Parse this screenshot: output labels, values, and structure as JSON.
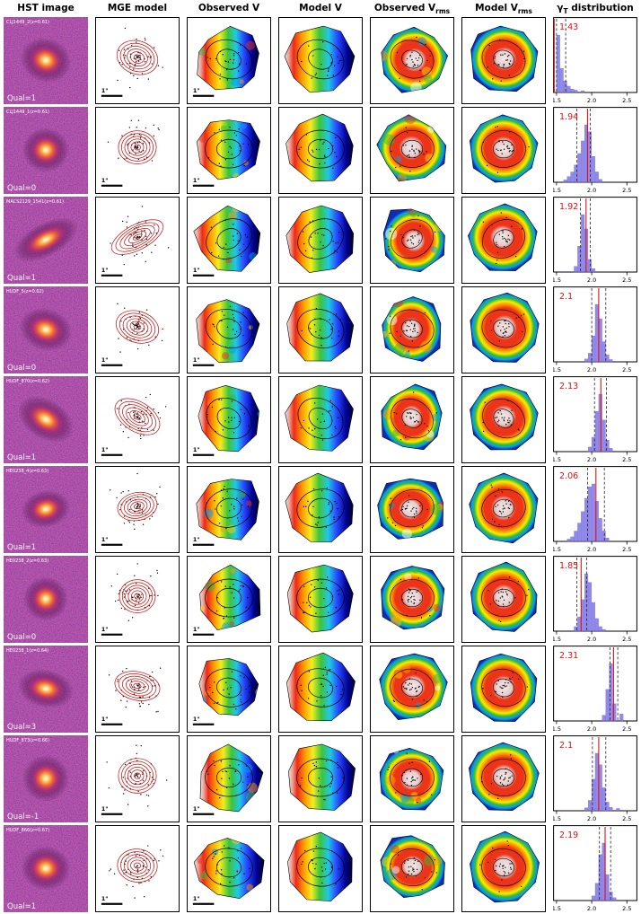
{
  "header": {
    "columns": [
      {
        "key": "hst-image",
        "label": "HST image"
      },
      {
        "key": "mge-model",
        "label": "MGE model"
      },
      {
        "key": "observed-v",
        "label": "Observed V"
      },
      {
        "key": "model-v",
        "label": "Model V"
      },
      {
        "key": "observed-vrms",
        "label": "Observed V",
        "sub": "rms"
      },
      {
        "key": "model-vrms",
        "label": "Model V",
        "sub": "rms"
      },
      {
        "key": "gamma-distribution",
        "label": "γ",
        "sub": "T",
        "post": " distribution"
      }
    ]
  },
  "panels": {
    "scalebar": "1\""
  },
  "rows": [
    {
      "name": "CLJ1449_2(z=0.61)",
      "qual": "Qual=1"
    },
    {
      "name": "CLJ1449_1(z=0.61)",
      "qual": "Qual=0"
    },
    {
      "name": "MACS2129_1541(z=0.61)",
      "qual": "Qual=1"
    },
    {
      "name": "HUDF_5(z=0.62)",
      "qual": "Qual=0"
    },
    {
      "name": "HUDF_870(z=0.62)",
      "qual": "Qual=1"
    },
    {
      "name": "HE0238_4(z=0.63)",
      "qual": "Qual=1"
    },
    {
      "name": "HE0238_2(z=0.63)",
      "qual": "Qual=0"
    },
    {
      "name": "HE0238_1(z=0.64)",
      "qual": "Qual=3"
    },
    {
      "name": "HUDF_873(z=0.66)",
      "qual": "Qual=-1"
    },
    {
      "name": "HUDF_866(z=0.67)",
      "qual": "Qual=1"
    }
  ],
  "histogram_axis": {
    "ticks": [
      "1.5",
      "2.0",
      "2.5"
    ]
  },
  "chart_data": [
    {
      "type": "histogram",
      "galaxy": "CLJ1449_2(z=0.61)",
      "gamma_label": "1.43",
      "gamma": 1.43,
      "dashed": [
        1.5,
        1.63
      ],
      "xlim": [
        1.45,
        2.65
      ],
      "xticks": [
        1.5,
        2.0,
        2.5
      ],
      "bin_width": 0.05,
      "bin_centers": [
        1.525,
        1.575,
        1.625,
        1.675,
        1.725,
        1.775,
        1.875
      ],
      "rel_heights": [
        1,
        0.42,
        0.2,
        0.11,
        0.06,
        0.04,
        0.03
      ]
    },
    {
      "type": "histogram",
      "galaxy": "CLJ1449_1(z=0.61)",
      "gamma_label": "1.94",
      "gamma": 1.94,
      "dashed": [
        1.79,
        1.98
      ],
      "xlim": [
        1.45,
        2.65
      ],
      "xticks": [
        1.5,
        2.0,
        2.5
      ],
      "bin_width": 0.05,
      "bin_centers": [
        1.625,
        1.675,
        1.725,
        1.775,
        1.825,
        1.875,
        1.925,
        1.975,
        2.025,
        2.075,
        2.125
      ],
      "rel_heights": [
        0.04,
        0.1,
        0.18,
        0.3,
        0.5,
        0.72,
        1,
        0.88,
        0.45,
        0.18,
        0.05
      ]
    },
    {
      "type": "histogram",
      "galaxy": "MACS2129_1541(z=0.61)",
      "gamma_label": "1.92",
      "gamma": 1.92,
      "dashed": [
        1.84,
        1.98
      ],
      "xlim": [
        1.45,
        2.65
      ],
      "xticks": [
        1.5,
        2.0,
        2.5
      ],
      "bin_width": 0.05,
      "bin_centers": [
        1.775,
        1.825,
        1.875,
        1.925,
        1.975,
        2.025
      ],
      "rel_heights": [
        0.1,
        0.45,
        1,
        0.75,
        0.22,
        0.06
      ]
    },
    {
      "type": "histogram",
      "galaxy": "HUDF_5(z=0.62)",
      "gamma_label": "2.1",
      "gamma": 2.1,
      "dashed": [
        2.0,
        2.2
      ],
      "xlim": [
        1.45,
        2.65
      ],
      "xticks": [
        1.5,
        2.0,
        2.5
      ],
      "bin_width": 0.05,
      "bin_centers": [
        1.925,
        1.975,
        2.025,
        2.075,
        2.125,
        2.175,
        2.225,
        2.275
      ],
      "rel_heights": [
        0.05,
        0.15,
        0.45,
        1,
        0.75,
        0.35,
        0.12,
        0.04
      ]
    },
    {
      "type": "histogram",
      "galaxy": "HUDF_870(z=0.62)",
      "gamma_label": "2.13",
      "gamma": 2.13,
      "dashed": [
        2.04,
        2.21
      ],
      "xlim": [
        1.45,
        2.65
      ],
      "xticks": [
        1.5,
        2.0,
        2.5
      ],
      "bin_width": 0.05,
      "bin_centers": [
        1.975,
        2.025,
        2.075,
        2.125,
        2.175,
        2.225,
        2.275
      ],
      "rel_heights": [
        0.08,
        0.25,
        0.7,
        1,
        0.55,
        0.2,
        0.06
      ]
    },
    {
      "type": "histogram",
      "galaxy": "HE0238_4(z=0.63)",
      "gamma_label": "2.06",
      "gamma": 2.06,
      "dashed": [
        1.94,
        2.18
      ],
      "xlim": [
        1.45,
        2.65
      ],
      "xticks": [
        1.5,
        2.0,
        2.5
      ],
      "bin_width": 0.05,
      "bin_centers": [
        1.675,
        1.725,
        1.775,
        1.825,
        1.875,
        1.925,
        1.975,
        2.025,
        2.075,
        2.125,
        2.175,
        2.225
      ],
      "rel_heights": [
        0.04,
        0.08,
        0.18,
        0.32,
        0.52,
        0.75,
        0.95,
        1,
        0.7,
        0.4,
        0.18,
        0.06
      ]
    },
    {
      "type": "histogram",
      "galaxy": "HE0238_2(z=0.63)",
      "gamma_label": "1.85",
      "gamma": 1.85,
      "dashed": [
        1.79,
        1.93
      ],
      "xlim": [
        1.45,
        2.65
      ],
      "xticks": [
        1.5,
        2.0,
        2.5
      ],
      "bin_width": 0.05,
      "bin_centers": [
        1.775,
        1.825,
        1.875,
        1.925,
        1.975,
        2.025,
        2.075,
        2.125,
        2.175
      ],
      "rel_heights": [
        0.08,
        0.25,
        0.55,
        1,
        0.85,
        0.5,
        0.22,
        0.08,
        0.03
      ]
    },
    {
      "type": "histogram",
      "galaxy": "HE0238_1(z=0.64)",
      "gamma_label": "2.31",
      "gamma": 2.31,
      "dashed": [
        2.26,
        2.37
      ],
      "xlim": [
        1.45,
        2.65
      ],
      "xticks": [
        1.5,
        2.0,
        2.5
      ],
      "bin_width": 0.05,
      "bin_centers": [
        2.175,
        2.225,
        2.275,
        2.325,
        2.425
      ],
      "rel_heights": [
        0.1,
        0.55,
        1,
        0.3,
        0.12
      ]
    },
    {
      "type": "histogram",
      "galaxy": "HUDF_873(z=0.66)",
      "gamma_label": "2.1",
      "gamma": 2.1,
      "dashed": [
        2.01,
        2.2
      ],
      "xlim": [
        1.45,
        2.65
      ],
      "xticks": [
        1.5,
        2.0,
        2.5
      ],
      "bin_width": 0.05,
      "bin_centers": [
        1.925,
        1.975,
        2.025,
        2.075,
        2.125,
        2.175,
        2.225,
        2.275,
        2.375
      ],
      "rel_heights": [
        0.05,
        0.18,
        0.55,
        1,
        0.8,
        0.4,
        0.15,
        0.06,
        0.04
      ]
    },
    {
      "type": "histogram",
      "galaxy": "HUDF_866(z=0.67)",
      "gamma_label": "2.19",
      "gamma": 2.19,
      "dashed": [
        2.11,
        2.27
      ],
      "xlim": [
        1.45,
        2.65
      ],
      "xticks": [
        1.5,
        2.0,
        2.5
      ],
      "bin_width": 0.05,
      "bin_centers": [
        2.025,
        2.075,
        2.125,
        2.175,
        2.225,
        2.275,
        2.325
      ],
      "rel_heights": [
        0.08,
        0.3,
        0.8,
        1,
        0.45,
        0.15,
        0.05
      ]
    }
  ],
  "colors": {
    "histogram_bar": "#7f76e8",
    "gamma_line": "#e01010",
    "mge_contour": "#c41212",
    "hst_background": "#14021a"
  }
}
